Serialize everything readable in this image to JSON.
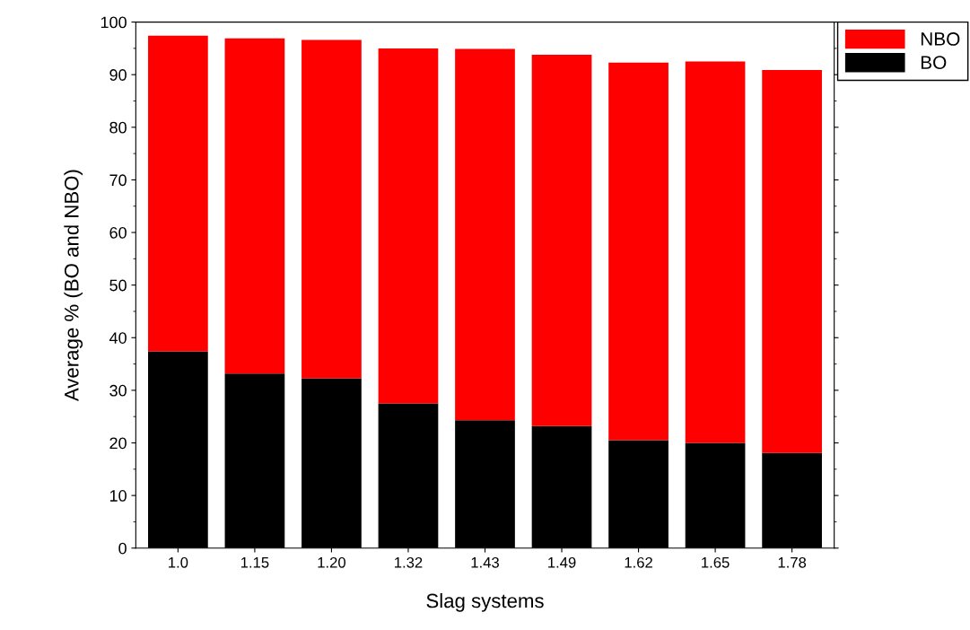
{
  "chart_data": {
    "type": "bar",
    "stacked": true,
    "xlabel": "Slag systems",
    "ylabel": "Average % (BO and NBO)",
    "categories": [
      "1.0",
      "1.15",
      "1.20",
      "1.32",
      "1.43",
      "1.49",
      "1.62",
      "1.65",
      "1.78"
    ],
    "series": [
      {
        "name": "BO",
        "color": "#000000",
        "values": [
          37.4,
          33.2,
          32.3,
          27.5,
          24.3,
          23.2,
          20.5,
          20.0,
          18.1
        ]
      },
      {
        "name": "NBO",
        "color": "#ff0000",
        "values": [
          60.0,
          63.7,
          64.3,
          67.5,
          70.6,
          70.6,
          71.8,
          72.5,
          72.8
        ]
      }
    ],
    "ylim": [
      0,
      100
    ],
    "yticks": [
      0,
      10,
      20,
      30,
      40,
      50,
      60,
      70,
      80,
      90,
      100
    ],
    "grid": false,
    "legend": "top right"
  }
}
